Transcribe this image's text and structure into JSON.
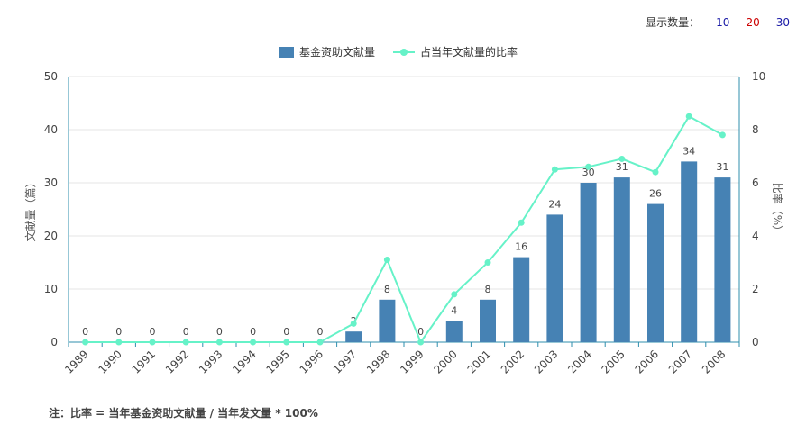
{
  "controls": {
    "label": "显示数量：",
    "options": [
      {
        "text": "10",
        "color": "#1a1aa6"
      },
      {
        "text": "20",
        "color": "#cc0000"
      },
      {
        "text": "30",
        "color": "#1a1aa6"
      }
    ]
  },
  "note": "注：比率 = 当年基金资助文献量 / 当年发文量 * 100%",
  "colors": {
    "bar": "#4682b4",
    "line": "#66f2c8",
    "axis": "#2f8fae",
    "grid": "#e4e4e4"
  },
  "chart_data": {
    "type": "bar",
    "categories": [
      "1989",
      "1990",
      "1991",
      "1992",
      "1993",
      "1994",
      "1995",
      "1996",
      "1997",
      "1998",
      "1999",
      "2000",
      "2001",
      "2002",
      "2003",
      "2004",
      "2005",
      "2006",
      "2007",
      "2008"
    ],
    "series": [
      {
        "name": "基金资助文献量",
        "type": "bar",
        "axis": "left",
        "values": [
          0,
          0,
          0,
          0,
          0,
          0,
          0,
          0,
          2,
          8,
          0,
          4,
          8,
          16,
          24,
          30,
          31,
          26,
          34,
          31
        ],
        "data_labels": [
          "0",
          "0",
          "0",
          "0",
          "0",
          "0",
          "0",
          "0",
          "2",
          "8",
          "0",
          "4",
          "8",
          "16",
          "24",
          "30",
          "31",
          "26",
          "34",
          "31"
        ]
      },
      {
        "name": "占当年文献量的比率",
        "type": "line",
        "axis": "right",
        "values": [
          0,
          0,
          0,
          0,
          0,
          0,
          0,
          0,
          0.7,
          3.1,
          0,
          1.8,
          3.0,
          4.5,
          6.5,
          6.6,
          6.9,
          6.4,
          8.5,
          7.8
        ]
      }
    ],
    "ylabel_left": "文献量（篇）",
    "ylabel_right": "比率（%）",
    "ylim_left": [
      0,
      50
    ],
    "ylim_right": [
      0,
      10
    ],
    "yticks_left": [
      0,
      10,
      20,
      30,
      40,
      50
    ],
    "yticks_right": [
      0,
      2,
      4,
      6,
      8,
      10
    ],
    "grid": true,
    "legend": "top-center"
  }
}
